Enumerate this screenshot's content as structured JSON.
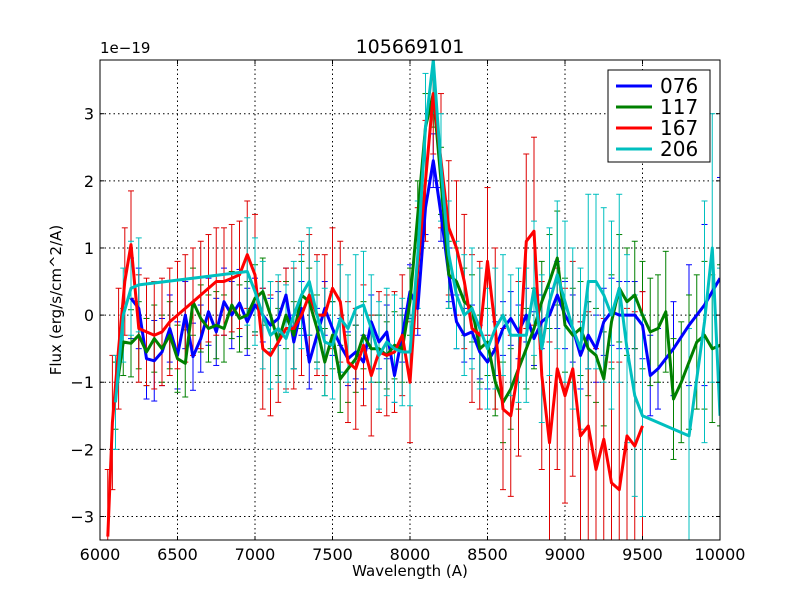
{
  "chart_data": {
    "type": "line",
    "title": "105669101",
    "xlabel": "Wavelength (A)",
    "ylabel": "Flux (erg/s/cm^2/A)",
    "offset_label": "1e−19",
    "xlim": [
      6000,
      10000
    ],
    "ylim": [
      -3.35,
      3.8
    ],
    "x_ticks": [
      6000,
      6500,
      7000,
      7500,
      8000,
      8500,
      9000,
      9500,
      10000
    ],
    "y_ticks": [
      -3,
      -2,
      -1,
      0,
      1,
      2,
      3
    ],
    "grid": true,
    "legend_position": "top-right",
    "series": [
      {
        "name": "076",
        "color": "#0000ff",
        "error_color": "#0000ff",
        "x": [
          6200,
          6250,
          6300,
          6350,
          6400,
          6450,
          6500,
          6550,
          6600,
          6650,
          6700,
          6750,
          6800,
          6850,
          6900,
          6950,
          7000,
          7050,
          7100,
          7150,
          7200,
          7250,
          7300,
          7350,
          7400,
          7450,
          7500,
          7550,
          7600,
          7650,
          7700,
          7750,
          7800,
          7850,
          7900,
          7950,
          8000,
          8050,
          8100,
          8150,
          8200,
          8250,
          8300,
          8350,
          8400,
          8450,
          8500,
          8550,
          8600,
          8650,
          8700,
          8750,
          8800,
          8850,
          8900,
          8950,
          9000,
          9050,
          9100,
          9150,
          9200,
          9250,
          9300,
          9350,
          9400,
          9450,
          9500,
          9550,
          9600,
          9700,
          9800,
          9900,
          10000
        ],
        "y": [
          0.25,
          0.1,
          -0.65,
          -0.68,
          -0.55,
          -0.2,
          -0.6,
          0.0,
          -0.62,
          -0.35,
          0.05,
          -0.25,
          0.2,
          0.0,
          0.18,
          -0.1,
          0.15,
          0.0,
          -0.15,
          -0.05,
          0.3,
          -0.4,
          0.1,
          -0.7,
          -0.3,
          0.1,
          -0.2,
          -0.45,
          -0.65,
          -0.55,
          -0.7,
          -0.1,
          -0.4,
          -0.25,
          -0.9,
          -0.3,
          0.35,
          0.1,
          1.6,
          2.3,
          1.5,
          0.6,
          -0.1,
          -0.3,
          -0.25,
          -0.55,
          -0.7,
          -0.5,
          -0.2,
          -0.05,
          -0.25,
          0.0,
          -0.35,
          -0.1,
          0.0,
          0.3,
          0.0,
          -0.2,
          -0.6,
          -0.3,
          -0.5,
          -0.1,
          0.05,
          0.0,
          0.0,
          0.0,
          -0.15,
          -0.9,
          -0.8,
          -0.5,
          -0.15,
          0.15,
          0.55
        ],
        "error": [
          0.6,
          0.6,
          0.6,
          0.6,
          0.5,
          0.5,
          0.5,
          0.5,
          0.5,
          0.5,
          0.5,
          0.5,
          0.5,
          0.5,
          0.5,
          0.5,
          0.4,
          0.4,
          0.4,
          0.4,
          0.4,
          0.4,
          0.4,
          0.4,
          0.4,
          0.4,
          0.4,
          0.4,
          0.4,
          0.4,
          0.4,
          0.4,
          0.4,
          0.4,
          0.4,
          0.4,
          0.4,
          0.4,
          0.4,
          0.4,
          0.4,
          0.4,
          0.4,
          0.4,
          0.4,
          0.4,
          0.4,
          0.4,
          0.4,
          0.4,
          0.4,
          0.4,
          0.4,
          0.4,
          0.4,
          0.5,
          0.5,
          0.5,
          0.5,
          0.5,
          0.5,
          0.5,
          0.5,
          0.5,
          0.5,
          0.5,
          0.5,
          0.6,
          0.6,
          0.7,
          0.9,
          1.2,
          1.5
        ]
      },
      {
        "name": "117",
        "color": "#008000",
        "error_color": "#008000",
        "x": [
          6100,
          6150,
          6200,
          6250,
          6300,
          6350,
          6400,
          6450,
          6500,
          6550,
          6600,
          6650,
          6700,
          6750,
          6800,
          6850,
          6900,
          6950,
          7000,
          7050,
          7100,
          7150,
          7200,
          7250,
          7300,
          7350,
          7400,
          7450,
          7500,
          7550,
          7600,
          7650,
          7700,
          7750,
          7800,
          7850,
          7900,
          7950,
          8000,
          8050,
          8100,
          8150,
          8200,
          8250,
          8300,
          8350,
          8400,
          8450,
          8500,
          8550,
          8600,
          8650,
          8700,
          8750,
          8800,
          8850,
          8900,
          8950,
          9000,
          9050,
          9100,
          9150,
          9200,
          9250,
          9300,
          9350,
          9400,
          9450,
          9500,
          9550,
          9600,
          9650,
          9700,
          9750,
          9800,
          9850,
          9900,
          9950,
          10000
        ],
        "y": [
          -1.2,
          -0.4,
          -0.42,
          -0.3,
          -0.55,
          -0.35,
          -0.5,
          -0.3,
          -0.65,
          -0.72,
          0.2,
          -0.05,
          -0.2,
          -0.15,
          -0.2,
          0.15,
          -0.05,
          0.0,
          0.25,
          0.35,
          0.0,
          -0.4,
          0.0,
          -0.3,
          0.3,
          0.2,
          -0.2,
          -0.7,
          -0.3,
          -0.95,
          -0.8,
          -0.65,
          -0.3,
          -0.5,
          -0.5,
          -0.6,
          -0.45,
          -0.5,
          0.2,
          1.5,
          2.8,
          3.3,
          2.0,
          0.6,
          0.5,
          0.2,
          0.1,
          -0.5,
          -0.4,
          -1.0,
          -1.3,
          -1.1,
          -0.8,
          -0.5,
          -0.2,
          0.2,
          0.5,
          0.85,
          -0.15,
          -0.3,
          -0.2,
          -0.5,
          -0.6,
          -0.95,
          -0.1,
          0.4,
          0.2,
          0.3,
          0.0,
          -0.25,
          -0.2,
          0.05,
          -1.25,
          -1.0,
          -0.7,
          -0.4,
          -0.3,
          -0.5,
          -0.45
        ],
        "error": [
          0.5,
          0.5,
          0.5,
          0.5,
          0.5,
          0.5,
          0.5,
          0.5,
          0.5,
          0.5,
          0.5,
          0.5,
          0.5,
          0.5,
          0.5,
          0.5,
          0.5,
          0.5,
          0.5,
          0.5,
          0.5,
          0.5,
          0.5,
          0.5,
          0.5,
          0.5,
          0.5,
          0.5,
          0.5,
          0.5,
          0.5,
          0.5,
          0.5,
          0.5,
          0.5,
          0.5,
          0.5,
          0.5,
          0.5,
          0.5,
          0.5,
          0.5,
          0.5,
          0.5,
          0.5,
          0.5,
          0.5,
          0.5,
          0.5,
          0.5,
          0.6,
          0.6,
          0.6,
          0.6,
          0.6,
          0.6,
          0.7,
          0.7,
          0.7,
          0.7,
          0.7,
          0.7,
          0.7,
          0.7,
          0.7,
          0.8,
          0.8,
          0.8,
          0.8,
          0.8,
          0.8,
          0.9,
          0.9,
          0.9,
          1.0,
          1.0,
          1.1,
          1.1,
          1.2
        ]
      },
      {
        "name": "167",
        "color": "#ff0000",
        "error_color": "#dd0000",
        "x": [
          6050,
          6080,
          6120,
          6160,
          6200,
          6250,
          6300,
          6350,
          6400,
          6450,
          6500,
          6550,
          6600,
          6650,
          6700,
          6750,
          6800,
          6850,
          6900,
          6950,
          7000,
          7050,
          7100,
          7150,
          7200,
          7250,
          7300,
          7350,
          7400,
          7450,
          7500,
          7550,
          7600,
          7650,
          7700,
          7750,
          7800,
          7850,
          7900,
          7950,
          8000,
          8050,
          8100,
          8150,
          8200,
          8250,
          8300,
          8350,
          8400,
          8450,
          8500,
          8550,
          8600,
          8650,
          8700,
          8750,
          8800,
          8850,
          8900,
          8950,
          9000,
          9050,
          9100,
          9150,
          9200,
          9250,
          9300,
          9350,
          9400,
          9450,
          9500
        ],
        "y": [
          -3.3,
          -1.6,
          -0.5,
          0.5,
          1.05,
          -0.2,
          -0.25,
          -0.3,
          -0.25,
          -0.1,
          0.0,
          0.1,
          0.2,
          0.3,
          0.4,
          0.5,
          0.5,
          0.55,
          0.6,
          0.9,
          0.6,
          -0.5,
          -0.6,
          -0.4,
          -0.2,
          -0.2,
          0.0,
          0.3,
          0.0,
          0.0,
          0.4,
          0.2,
          -0.7,
          -0.8,
          -0.45,
          -0.9,
          -0.55,
          -0.6,
          -0.55,
          -0.3,
          -1.0,
          0.7,
          2.0,
          3.3,
          2.3,
          1.3,
          1.0,
          0.5,
          -0.2,
          -0.3,
          0.8,
          -0.2,
          -1.4,
          -1.5,
          -0.8,
          1.1,
          1.25,
          -0.9,
          -1.9,
          -0.8,
          -1.2,
          -0.8,
          -1.8,
          -1.65,
          -2.3,
          -1.85,
          -2.5,
          -2.6,
          -1.8,
          -1.95,
          -1.65
        ],
        "error": [
          1.0,
          1.0,
          0.9,
          0.8,
          0.8,
          0.8,
          0.8,
          0.8,
          0.8,
          0.8,
          0.8,
          0.8,
          0.8,
          0.8,
          0.8,
          0.8,
          0.8,
          0.8,
          0.8,
          0.8,
          0.9,
          0.9,
          0.9,
          0.9,
          0.9,
          0.9,
          0.9,
          0.9,
          0.9,
          0.9,
          0.9,
          0.9,
          0.9,
          0.9,
          0.9,
          0.9,
          0.9,
          0.9,
          0.9,
          0.9,
          0.9,
          0.9,
          0.9,
          0.9,
          1.0,
          1.0,
          1.0,
          1.0,
          1.1,
          1.1,
          1.1,
          1.2,
          1.2,
          1.2,
          1.3,
          1.3,
          1.4,
          1.4,
          1.5,
          1.5,
          1.6,
          1.6,
          1.7,
          1.7,
          1.8,
          1.8,
          1.8,
          1.9,
          1.9,
          2.0,
          2.0
        ]
      },
      {
        "name": "206",
        "color": "#00bfbf",
        "error_color": "#00bfbf",
        "x": [
          6100,
          6150,
          6200,
          6250,
          6950,
          7000,
          7050,
          7100,
          7150,
          7200,
          7250,
          7300,
          7350,
          7400,
          7450,
          7500,
          7550,
          7600,
          7650,
          7700,
          7750,
          7800,
          7850,
          7900,
          7950,
          8000,
          8050,
          8100,
          8150,
          8200,
          8250,
          8300,
          8350,
          8400,
          8450,
          8500,
          8550,
          8600,
          8650,
          8700,
          8750,
          8800,
          8850,
          8900,
          8950,
          9000,
          9050,
          9100,
          9150,
          9200,
          9250,
          9300,
          9350,
          9400,
          9450,
          9500,
          9800,
          9900,
          9950,
          10000
        ],
        "y": [
          -1.3,
          0.0,
          0.4,
          0.45,
          0.65,
          0.35,
          0.0,
          -0.3,
          -0.2,
          -0.35,
          0.0,
          0.3,
          0.5,
          0.0,
          -0.4,
          -0.45,
          -0.05,
          -0.2,
          0.1,
          0.15,
          -0.2,
          -0.6,
          -0.4,
          -0.5,
          -0.55,
          -0.55,
          0.9,
          2.8,
          3.8,
          2.2,
          0.9,
          0.3,
          0.0,
          0.1,
          -0.2,
          -0.5,
          -0.2,
          0.0,
          -0.3,
          -0.3,
          -0.3,
          0.4,
          -0.5,
          0.2,
          0.6,
          0.2,
          -0.2,
          -0.5,
          0.5,
          0.5,
          0.3,
          0.0,
          0.4,
          -0.5,
          -1.2,
          -1.5,
          -1.8,
          -0.1,
          1.0,
          -1.5
        ],
        "error": [
          0.7,
          0.7,
          0.7,
          0.7,
          0.8,
          0.8,
          0.8,
          0.8,
          0.8,
          0.8,
          0.8,
          0.8,
          0.8,
          0.8,
          0.8,
          0.8,
          0.8,
          0.8,
          0.8,
          0.8,
          0.8,
          0.8,
          0.8,
          0.8,
          0.8,
          0.8,
          0.8,
          0.8,
          0.8,
          0.8,
          0.8,
          0.8,
          0.9,
          0.9,
          0.9,
          0.9,
          0.9,
          0.9,
          0.9,
          1.0,
          1.0,
          1.0,
          1.1,
          1.1,
          1.1,
          1.2,
          1.2,
          1.2,
          1.3,
          1.3,
          1.3,
          1.4,
          1.4,
          1.4,
          1.5,
          1.5,
          1.6,
          1.8,
          2.0,
          2.2
        ]
      }
    ]
  }
}
